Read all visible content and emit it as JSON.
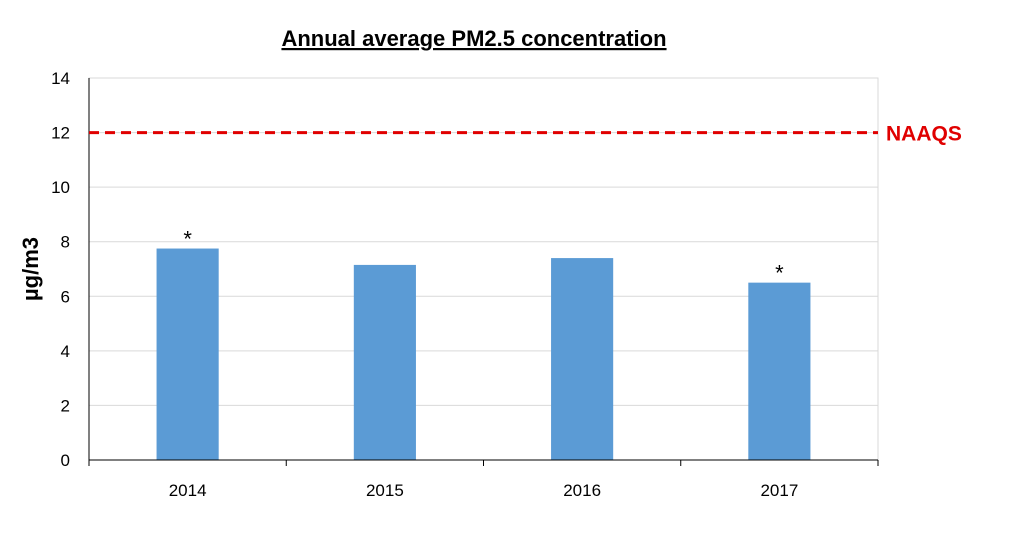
{
  "colors": {
    "bar": "#5B9BD5",
    "reference": "#E00000",
    "grid": "#D9D9D9",
    "axis": "#000000"
  },
  "chart_data": {
    "type": "bar",
    "title": "Annual average PM2.5 concentration",
    "xlabel": "",
    "ylabel": "µg/m3",
    "categories": [
      "2014",
      "2015",
      "2016",
      "2017"
    ],
    "values": [
      7.75,
      7.15,
      7.4,
      6.5
    ],
    "markers": [
      "*",
      "",
      "",
      "*"
    ],
    "ylim": [
      0,
      14
    ],
    "yticks": [
      0,
      2,
      4,
      6,
      8,
      10,
      12,
      14
    ],
    "grid": true,
    "reference_line": {
      "value": 12,
      "label": "NAAQS",
      "style": "dashed"
    }
  }
}
